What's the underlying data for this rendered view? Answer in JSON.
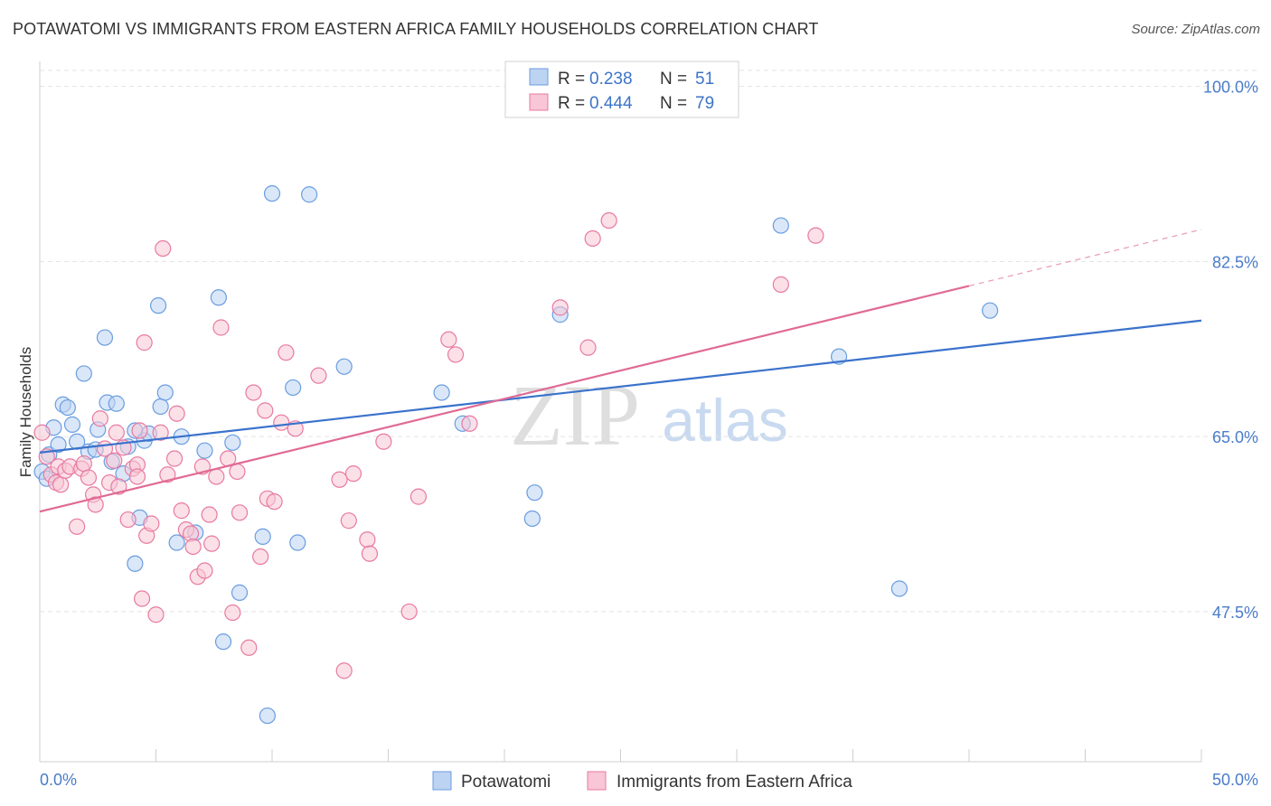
{
  "header": {
    "title": "POTAWATOMI VS IMMIGRANTS FROM EASTERN AFRICA FAMILY HOUSEHOLDS CORRELATION CHART",
    "source": "Source: ZipAtlas.com"
  },
  "watermark": {
    "zip": "ZIP",
    "atlas": "atlas"
  },
  "chart_data": {
    "type": "scatter",
    "xlabel": "",
    "ylabel": "Family Households",
    "xlim": [
      0,
      50
    ],
    "ylim": [
      32.5,
      102.5
    ],
    "x_tick_labels": [
      "0.0%",
      "50.0%"
    ],
    "y_ticks": [
      {
        "value": 100,
        "label": "100.0%"
      },
      {
        "value": 82.5,
        "label": "82.5%"
      },
      {
        "value": 65,
        "label": "65.0%"
      },
      {
        "value": 47.5,
        "label": "47.5%"
      }
    ],
    "grid": "horizontal dashed",
    "legend_stats": [
      {
        "r_label": "R =",
        "r_value": "0.238",
        "n_label": "N =",
        "n_value": "51"
      },
      {
        "r_label": "R =",
        "r_value": "0.444",
        "n_label": "N =",
        "n_value": "79"
      }
    ],
    "series": [
      {
        "name": "Potawatomi",
        "color": "#6a9de0",
        "fill": "#bcd3f2",
        "trend": {
          "x0": 0,
          "y0": 63.4,
          "x1": 50,
          "y1": 76.6,
          "dash_from": null
        },
        "points": [
          [
            0.1,
            61.5
          ],
          [
            0.4,
            63.2
          ],
          [
            0.6,
            65.9
          ],
          [
            0.8,
            64.2
          ],
          [
            1,
            68.2
          ],
          [
            1.2,
            67.9
          ],
          [
            1.4,
            66.2
          ],
          [
            1.6,
            64.5
          ],
          [
            1.9,
            71.3
          ],
          [
            2.1,
            63.5
          ],
          [
            2.4,
            63.7
          ],
          [
            2.5,
            65.7
          ],
          [
            2.8,
            74.9
          ],
          [
            2.9,
            68.4
          ],
          [
            3.1,
            62.5
          ],
          [
            3.3,
            68.3
          ],
          [
            3.6,
            61.3
          ],
          [
            3.8,
            64.0
          ],
          [
            4.1,
            65.6
          ],
          [
            4.3,
            56.9
          ],
          [
            4.5,
            64.6
          ],
          [
            4.7,
            65.3
          ],
          [
            5.1,
            78.1
          ],
          [
            5.2,
            68.0
          ],
          [
            5.4,
            69.4
          ],
          [
            5.9,
            54.4
          ],
          [
            6.1,
            65.0
          ],
          [
            6.7,
            55.4
          ],
          [
            7.1,
            63.6
          ],
          [
            7.7,
            78.9
          ],
          [
            8.3,
            64.4
          ],
          [
            8.6,
            49.4
          ],
          [
            9.6,
            55.0
          ],
          [
            10.0,
            89.3
          ],
          [
            10.9,
            69.9
          ],
          [
            11.1,
            54.4
          ],
          [
            11.6,
            89.2
          ],
          [
            13.1,
            72.0
          ],
          [
            17.3,
            69.4
          ],
          [
            18.2,
            66.3
          ],
          [
            21.2,
            56.8
          ],
          [
            21.3,
            59.4
          ],
          [
            22.4,
            77.2
          ],
          [
            31.9,
            86.1
          ],
          [
            34.4,
            73.0
          ],
          [
            37.0,
            49.8
          ],
          [
            40.9,
            77.6
          ],
          [
            9.8,
            37.1
          ],
          [
            7.9,
            44.5
          ],
          [
            4.1,
            52.3
          ],
          [
            0.3,
            60.8
          ]
        ]
      },
      {
        "name": "Immigrants from Eastern Africa",
        "color": "#e87aa0",
        "fill": "#f8c6d6",
        "trend": {
          "x0": 0,
          "y0": 57.5,
          "x1": 50,
          "y1": 85.7,
          "dash_from": 40.0
        },
        "points": [
          [
            0.1,
            65.4
          ],
          [
            0.3,
            63.0
          ],
          [
            0.5,
            61.2
          ],
          [
            0.7,
            60.4
          ],
          [
            0.8,
            62.0
          ],
          [
            0.9,
            60.2
          ],
          [
            1.1,
            61.6
          ],
          [
            1.3,
            62.0
          ],
          [
            1.6,
            56.0
          ],
          [
            1.8,
            61.8
          ],
          [
            1.9,
            62.3
          ],
          [
            2.1,
            60.9
          ],
          [
            2.3,
            59.2
          ],
          [
            2.4,
            58.2
          ],
          [
            2.6,
            66.8
          ],
          [
            2.8,
            63.8
          ],
          [
            3.0,
            60.4
          ],
          [
            3.2,
            62.6
          ],
          [
            3.3,
            65.4
          ],
          [
            3.4,
            60.0
          ],
          [
            3.6,
            63.9
          ],
          [
            3.8,
            56.7
          ],
          [
            4.0,
            61.8
          ],
          [
            4.2,
            62.2
          ],
          [
            4.3,
            65.6
          ],
          [
            4.4,
            48.8
          ],
          [
            4.5,
            74.4
          ],
          [
            4.6,
            55.1
          ],
          [
            4.8,
            56.3
          ],
          [
            5.0,
            47.2
          ],
          [
            5.2,
            65.4
          ],
          [
            5.3,
            83.8
          ],
          [
            5.5,
            61.2
          ],
          [
            5.8,
            62.8
          ],
          [
            5.9,
            67.3
          ],
          [
            6.1,
            57.6
          ],
          [
            6.3,
            55.7
          ],
          [
            6.5,
            55.3
          ],
          [
            6.6,
            54.0
          ],
          [
            6.8,
            51.0
          ],
          [
            7.0,
            62.0
          ],
          [
            7.1,
            51.6
          ],
          [
            7.3,
            57.2
          ],
          [
            7.4,
            54.3
          ],
          [
            7.6,
            61.0
          ],
          [
            7.8,
            75.9
          ],
          [
            8.1,
            62.8
          ],
          [
            8.3,
            47.4
          ],
          [
            8.5,
            61.5
          ],
          [
            8.6,
            57.4
          ],
          [
            9.0,
            43.9
          ],
          [
            9.2,
            69.4
          ],
          [
            9.5,
            53.0
          ],
          [
            9.7,
            67.6
          ],
          [
            9.8,
            58.8
          ],
          [
            10.1,
            58.5
          ],
          [
            10.4,
            66.4
          ],
          [
            10.6,
            73.4
          ],
          [
            11.0,
            65.8
          ],
          [
            12.0,
            71.1
          ],
          [
            12.9,
            60.7
          ],
          [
            13.1,
            41.6
          ],
          [
            13.3,
            56.6
          ],
          [
            13.5,
            61.3
          ],
          [
            14.1,
            54.7
          ],
          [
            14.2,
            53.3
          ],
          [
            14.8,
            64.5
          ],
          [
            15.9,
            47.5
          ],
          [
            16.3,
            59.0
          ],
          [
            17.6,
            74.7
          ],
          [
            17.9,
            73.2
          ],
          [
            18.5,
            66.3
          ],
          [
            22.4,
            77.9
          ],
          [
            23.6,
            73.9
          ],
          [
            23.8,
            84.8
          ],
          [
            24.5,
            86.6
          ],
          [
            31.9,
            80.2
          ],
          [
            33.4,
            85.1
          ],
          [
            4.2,
            61.0
          ]
        ]
      }
    ]
  },
  "bottom_legend": [
    {
      "label": "Potawatomi"
    },
    {
      "label": "Immigrants from Eastern Africa"
    }
  ]
}
